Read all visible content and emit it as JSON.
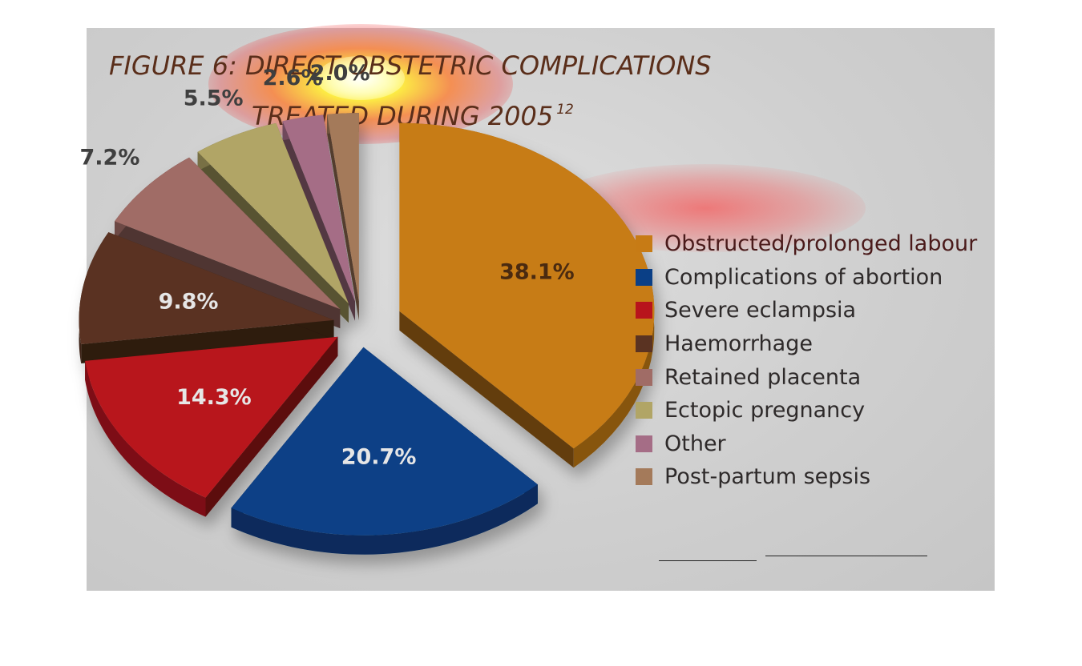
{
  "title_line1": "FIGURE 6: DIRECT OBSTETRIC COMPLICATIONS",
  "title_line2": "TREATED DURING 2005",
  "title_superscript": "12",
  "chart_data": {
    "type": "pie",
    "title": "FIGURE 6: DIRECT OBSTETRIC COMPLICATIONS TREATED DURING 2005",
    "labels": [
      "Obstructed/prolonged labour",
      "Complications of abortion",
      "Severe eclampsia",
      "Haemorrhage",
      "Retained placenta",
      "Ectopic pregnancy",
      "Other",
      "Post-partum sepsis"
    ],
    "values": [
      38.1,
      20.7,
      14.3,
      9.8,
      7.2,
      5.5,
      2.6,
      2.0
    ],
    "value_labels": [
      "38.1%",
      "20.7%",
      "14.3%",
      "9.8%",
      "7.2%",
      "5.5%",
      "2.6%",
      "2.0%"
    ],
    "colors": [
      "#c77b15",
      "#0a3f86",
      "#b8141c",
      "#5a3322",
      "#a06c66",
      "#b1a566",
      "#a56d86",
      "#a47a5a"
    ],
    "legend_placement": "right",
    "exploded": true,
    "three_d": true
  }
}
